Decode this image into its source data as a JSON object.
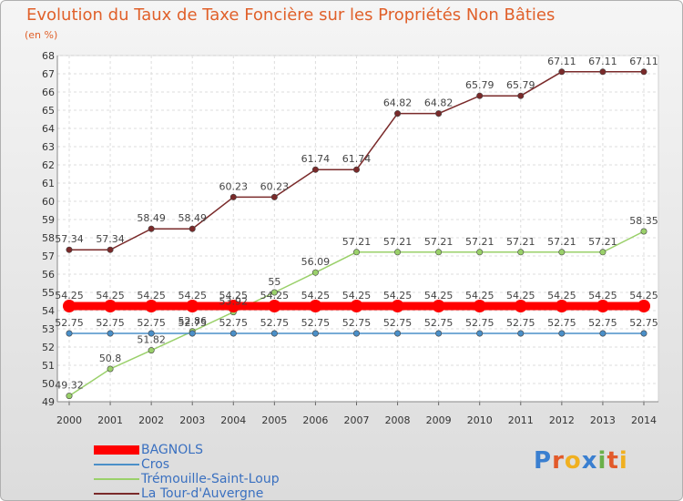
{
  "chart_data": {
    "type": "line",
    "title": "Evolution du Taux de Taxe Foncière sur les Propriétés Non Bâties",
    "ylabel": "(en %)",
    "ylim": [
      49,
      68
    ],
    "grid": true,
    "categories": [
      "2000",
      "2001",
      "2002",
      "2003",
      "2004",
      "2005",
      "2006",
      "2007",
      "2008",
      "2009",
      "2010",
      "2011",
      "2012",
      "2013",
      "2014"
    ],
    "y_ticks": [
      49,
      50,
      51,
      52,
      53,
      54,
      55,
      56,
      57,
      58,
      59,
      60,
      61,
      62,
      63,
      64,
      65,
      66,
      67,
      68
    ],
    "series": [
      {
        "name": "BAGNOLS",
        "color": "#ff0000",
        "values": [
          54.25,
          54.25,
          54.25,
          54.25,
          54.25,
          54.25,
          54.25,
          54.25,
          54.25,
          54.25,
          54.25,
          54.25,
          54.25,
          54.25,
          54.25
        ],
        "labels": [
          "54.25",
          "54.25",
          "54.25",
          "54.25",
          "54.25",
          "54.25",
          "54.25",
          "54.25",
          "54.25",
          "54.25",
          "54.25",
          "54.25",
          "54.25",
          "54.25",
          "54.25"
        ]
      },
      {
        "name": "Cros",
        "color": "#4a8fc8",
        "values": [
          52.75,
          52.75,
          52.75,
          52.75,
          52.75,
          52.75,
          52.75,
          52.75,
          52.75,
          52.75,
          52.75,
          52.75,
          52.75,
          52.75,
          52.75
        ],
        "labels": [
          "52.75",
          "52.75",
          "52.75",
          "52.75",
          "52.75",
          "52.75",
          "52.75",
          "52.75",
          "52.75",
          "52.75",
          "52.75",
          "52.75",
          "52.75",
          "52.75",
          "52.75"
        ]
      },
      {
        "name": "Trémouille-Saint-Loup",
        "color": "#9ad06a",
        "values": [
          49.32,
          50.8,
          51.82,
          52.86,
          53.92,
          55,
          56.09,
          57.21,
          57.21,
          57.21,
          57.21,
          57.21,
          57.21,
          57.21,
          58.35
        ],
        "labels": [
          "49.32",
          "50.8",
          "51.82",
          "52.86",
          "53.92",
          "55",
          "56.09",
          "57.21",
          "57.21",
          "57.21",
          "57.21",
          "57.21",
          "57.21",
          "57.21",
          "58.35"
        ]
      },
      {
        "name": "La Tour-d'Auvergne",
        "color": "#7a2a2a",
        "values": [
          57.34,
          57.34,
          58.49,
          58.49,
          60.23,
          60.23,
          61.74,
          61.74,
          64.82,
          64.82,
          65.79,
          65.79,
          67.11,
          67.11,
          67.11
        ],
        "labels": [
          "57.34",
          "57.34",
          "58.49",
          "58.49",
          "60.23",
          "60.23",
          "61.74",
          "61.74",
          "64.82",
          "64.82",
          "65.79",
          "65.79",
          "67.11",
          "67.11",
          "67.11"
        ]
      }
    ]
  },
  "logo": {
    "text": "Proxiti",
    "letters": [
      "P",
      "r",
      "o",
      "x",
      "i",
      "t",
      "i"
    ],
    "colors": [
      "#3a7fd0",
      "#e25a2a",
      "#f0b020",
      "#3a7fd0",
      "#6ab04a",
      "#e25a2a",
      "#f0b020"
    ]
  }
}
